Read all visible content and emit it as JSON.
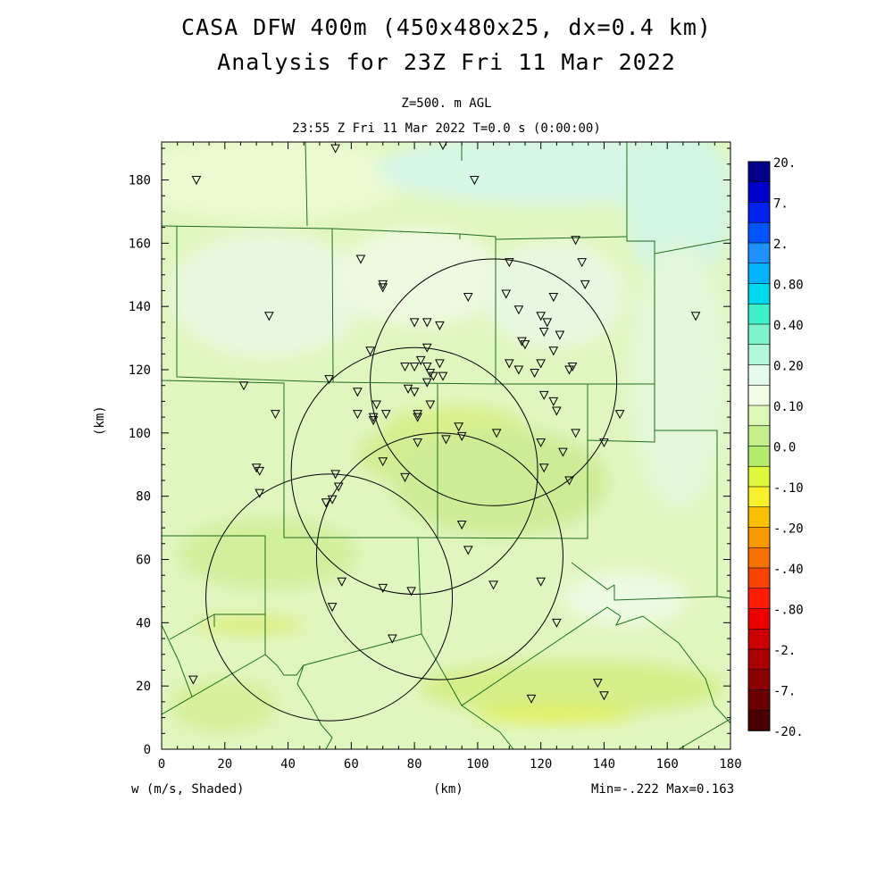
{
  "title": {
    "line1": "CASA DFW 400m (450x480x25, dx=0.4 km)",
    "line2": "Analysis for 23Z Fri 11 Mar 2022",
    "level": "Z=500. m AGL",
    "time": "23:55 Z Fri 11 Mar 2022    T=0.0 s (0:00:00)"
  },
  "axes": {
    "xlabel": "(km)",
    "ylabel": "(km)",
    "x_range": [
      0,
      180
    ],
    "y_range": [
      0,
      192
    ],
    "x_ticks": [
      "0",
      "20",
      "40",
      "60",
      "80",
      "100",
      "120",
      "140",
      "160",
      "180"
    ],
    "y_ticks": [
      "0",
      "20",
      "40",
      "60",
      "80",
      "100",
      "120",
      "140",
      "160",
      "180"
    ]
  },
  "footer": {
    "field": "w (m/s, Shaded)",
    "xunits": "(km)",
    "minmax": "Min=-.222 Max=0.163"
  },
  "colorbar": {
    "labels": [
      "20.",
      "7.",
      "2.",
      "0.80",
      "0.40",
      "0.20",
      "0.10",
      "0.0",
      "-.10",
      "-.20",
      "-.40",
      "-.80",
      "-2.",
      "-7.",
      "-20."
    ],
    "colors": [
      "#00008b",
      "#0000cd",
      "#0022ee",
      "#0055ff",
      "#1e90ff",
      "#00b4ff",
      "#00d8ee",
      "#3ef0cc",
      "#80f5cc",
      "#b4f8dc",
      "#e4fcec",
      "#f2fde6",
      "#dcf8b8",
      "#c4f08c",
      "#b4ec6e",
      "#e0f83c",
      "#f8f02c",
      "#f8c000",
      "#f89a00",
      "#f87000",
      "#f84400",
      "#ff1c00",
      "#ee0000",
      "#cc0000",
      "#aa0000",
      "#8b0000",
      "#6a0000",
      "#4a0000"
    ]
  },
  "radar_rings": [
    {
      "cx": 105,
      "cy": 116,
      "r": 39
    },
    {
      "cx": 80,
      "cy": 88,
      "r": 39
    },
    {
      "cx": 88,
      "cy": 61,
      "r": 39
    },
    {
      "cx": 53,
      "cy": 48,
      "r": 39
    }
  ],
  "stations": [
    [
      11,
      180
    ],
    [
      55,
      190
    ],
    [
      89,
      191
    ],
    [
      99,
      180
    ],
    [
      131,
      161
    ],
    [
      133,
      154
    ],
    [
      134,
      147
    ],
    [
      63,
      155
    ],
    [
      70,
      147
    ],
    [
      70,
      146
    ],
    [
      110,
      154
    ],
    [
      109,
      144
    ],
    [
      97,
      143
    ],
    [
      124,
      143
    ],
    [
      34,
      137
    ],
    [
      113,
      139
    ],
    [
      120,
      137
    ],
    [
      122,
      135
    ],
    [
      121,
      132
    ],
    [
      126,
      131
    ],
    [
      80,
      135
    ],
    [
      84,
      135
    ],
    [
      88,
      134
    ],
    [
      66,
      126
    ],
    [
      84,
      127
    ],
    [
      114,
      129
    ],
    [
      115,
      128
    ],
    [
      124,
      126
    ],
    [
      82,
      123
    ],
    [
      84,
      121
    ],
    [
      88,
      122
    ],
    [
      77,
      121
    ],
    [
      80,
      121
    ],
    [
      110,
      122
    ],
    [
      113,
      120
    ],
    [
      118,
      119
    ],
    [
      120,
      122
    ],
    [
      129,
      120
    ],
    [
      130,
      121
    ],
    [
      85,
      119
    ],
    [
      86,
      118
    ],
    [
      89,
      118
    ],
    [
      84,
      116
    ],
    [
      53,
      117
    ],
    [
      26,
      115
    ],
    [
      78,
      114
    ],
    [
      80,
      113
    ],
    [
      62,
      113
    ],
    [
      121,
      112
    ],
    [
      124,
      110
    ],
    [
      68,
      109
    ],
    [
      85,
      109
    ],
    [
      125,
      107
    ],
    [
      36,
      106
    ],
    [
      62,
      106
    ],
    [
      71,
      106
    ],
    [
      81,
      106
    ],
    [
      81,
      105
    ],
    [
      67,
      105
    ],
    [
      67,
      104
    ],
    [
      145,
      106
    ],
    [
      94,
      102
    ],
    [
      106,
      100
    ],
    [
      131,
      100
    ],
    [
      95,
      99
    ],
    [
      90,
      98
    ],
    [
      81,
      97
    ],
    [
      120,
      97
    ],
    [
      140,
      97
    ],
    [
      127,
      94
    ],
    [
      70,
      91
    ],
    [
      30,
      89
    ],
    [
      31,
      88
    ],
    [
      121,
      89
    ],
    [
      129,
      85
    ],
    [
      77,
      86
    ],
    [
      55,
      87
    ],
    [
      56,
      83
    ],
    [
      31,
      81
    ],
    [
      54,
      79
    ],
    [
      52,
      78
    ],
    [
      95,
      71
    ],
    [
      97,
      63
    ],
    [
      57,
      53
    ],
    [
      70,
      51
    ],
    [
      79,
      50
    ],
    [
      105,
      52
    ],
    [
      120,
      53
    ],
    [
      54,
      45
    ],
    [
      125,
      40
    ],
    [
      73,
      35
    ],
    [
      10,
      22
    ],
    [
      138,
      21
    ],
    [
      117,
      16
    ],
    [
      140,
      17
    ],
    [
      169,
      137
    ]
  ]
}
